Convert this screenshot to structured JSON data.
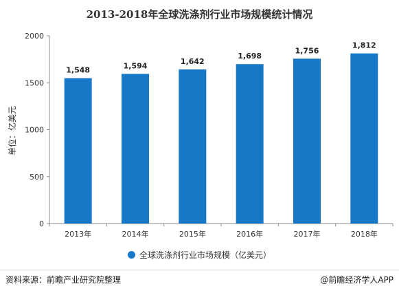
{
  "title": "2013-2018年全球洗涤剂行业市场规模统计情况",
  "source": "资料来源：前瞻产业研究院整理",
  "credit": "@前瞻经济学人APP",
  "colors": {
    "bar": "#1878c8",
    "axis": "#888888"
  },
  "chart_data": {
    "type": "bar",
    "title": "2013-2018年全球洗涤剂行业市场规模统计情况",
    "categories": [
      "2013年",
      "2014年",
      "2015年",
      "2016年",
      "2017年",
      "2018年"
    ],
    "series": [
      {
        "name": "全球洗涤剂行业市场规模（亿美元）",
        "values": [
          1548,
          1594,
          1642,
          1698,
          1756,
          1812
        ]
      }
    ],
    "value_labels": [
      "1,548",
      "1,594",
      "1,642",
      "1,698",
      "1,756",
      "1,812"
    ],
    "ylabel": "单位：亿美元",
    "xlabel": "",
    "ylim": [
      0,
      2000
    ],
    "yticks": [
      0,
      500,
      1000,
      1500,
      2000
    ],
    "grid": false,
    "legend_position": "bottom"
  }
}
